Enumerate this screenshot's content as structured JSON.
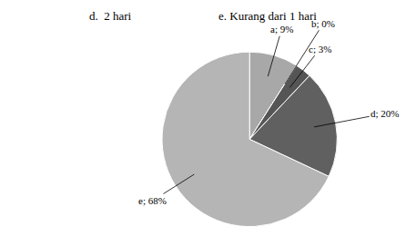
{
  "chart_data": {
    "type": "pie",
    "categories": [
      "a",
      "b",
      "c",
      "d",
      "e"
    ],
    "values": [
      9,
      0,
      3,
      20,
      68
    ],
    "value_labels": [
      "a; 9%",
      "b; 0%",
      "c; 3%",
      "d; 20%",
      "e; 68%"
    ],
    "colors": [
      "#a8a8a8",
      "#222222",
      "#555555",
      "#606060",
      "#b5b5b5"
    ],
    "data_labels": true,
    "annotations": [
      "d.  2 hari",
      "e. Kurang dari 1 hari"
    ]
  }
}
